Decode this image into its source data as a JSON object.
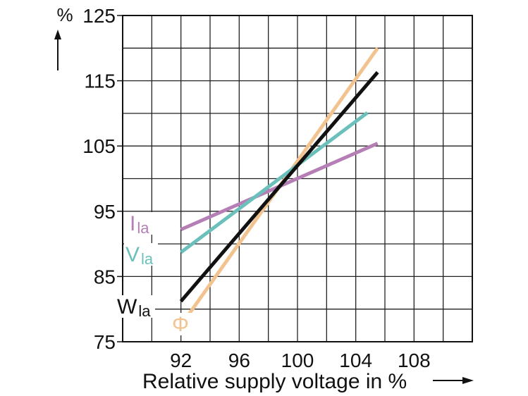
{
  "chart_data": {
    "type": "line",
    "y_unit": "%",
    "xlabel": "Relative supply voltage in %",
    "ylabel": "",
    "xlim": [
      88,
      112
    ],
    "ylim": [
      75,
      125
    ],
    "x_ticks": [
      92,
      96,
      100,
      104,
      108
    ],
    "y_ticks": [
      75,
      85,
      95,
      105,
      115,
      125
    ],
    "x_grid_step": 2,
    "y_grid_step": 5,
    "grid": true,
    "legend": "none",
    "series": [
      {
        "name": "Φ",
        "label_main": "Φ",
        "label_sub": "",
        "color": "#f2c38e",
        "points": [
          [
            92,
            77.5
          ],
          [
            105.5,
            120
          ]
        ]
      },
      {
        "name": "Ila",
        "label_main": "I",
        "label_sub": "la",
        "color": "#b57fb6",
        "points": [
          [
            92,
            92.2
          ],
          [
            105.5,
            105.4
          ]
        ]
      },
      {
        "name": "Vla",
        "label_main": "V",
        "label_sub": "la",
        "color": "#6cc0bb",
        "points": [
          [
            92,
            88.7
          ],
          [
            104.8,
            110.1
          ]
        ]
      },
      {
        "name": "Wla",
        "label_main": "W",
        "label_sub": "la",
        "color": "#111111",
        "points": [
          [
            92,
            81.2
          ],
          [
            105.5,
            116.3
          ]
        ]
      }
    ]
  }
}
